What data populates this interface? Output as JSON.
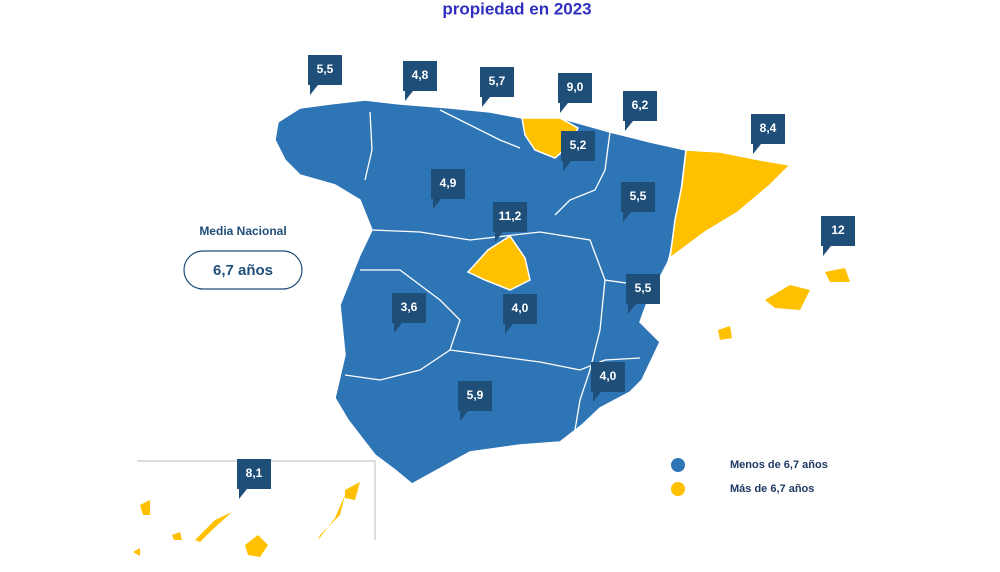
{
  "title": "propiedad en 2023",
  "national_average": {
    "label": "Media Nacional",
    "value": "6,7 años"
  },
  "callouts": [
    "5,5",
    "4,8",
    "5,7",
    "9,0",
    "6,2",
    "8,4",
    "5,2",
    "4,9",
    "5,5",
    "11,2",
    "12",
    "5,5",
    "3,6",
    "4,0",
    "4,0",
    "5,9",
    "8,1"
  ],
  "legend": [
    {
      "name": "Menos de 6,7 años",
      "color": "#2e75b6"
    },
    {
      "name": "Más de 6,7 años",
      "color": "#ffc000"
    }
  ]
}
